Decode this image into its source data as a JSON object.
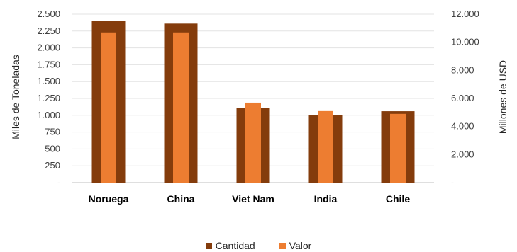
{
  "chart_data": {
    "type": "bar",
    "categories": [
      "Noruega",
      "China",
      "Viet Nam",
      "India",
      "Chile"
    ],
    "series": [
      {
        "name": "Cantidad",
        "axis": "left",
        "color": "#843c0c",
        "values": [
          2400,
          2360,
          1110,
          1000,
          1060
        ]
      },
      {
        "name": "Valor",
        "axis": "right",
        "color": "#ed7d31",
        "values": [
          10700,
          10700,
          5700,
          5100,
          4900
        ]
      }
    ],
    "ylabel_left": "Miles de Toneladas",
    "ylabel_right": "Millones de USD",
    "ylim_left": [
      0,
      2500
    ],
    "ylim_right": [
      0,
      12000
    ],
    "yticks_left": [
      "-",
      "250",
      "500",
      "750",
      "1.000",
      "1.250",
      "1.500",
      "1.750",
      "2.000",
      "2.250",
      "2.500"
    ],
    "yticks_right": [
      "-",
      "2.000",
      "4.000",
      "6.000",
      "8.000",
      "10.000",
      "12.000"
    ],
    "grid": true,
    "legend_position": "bottom"
  }
}
